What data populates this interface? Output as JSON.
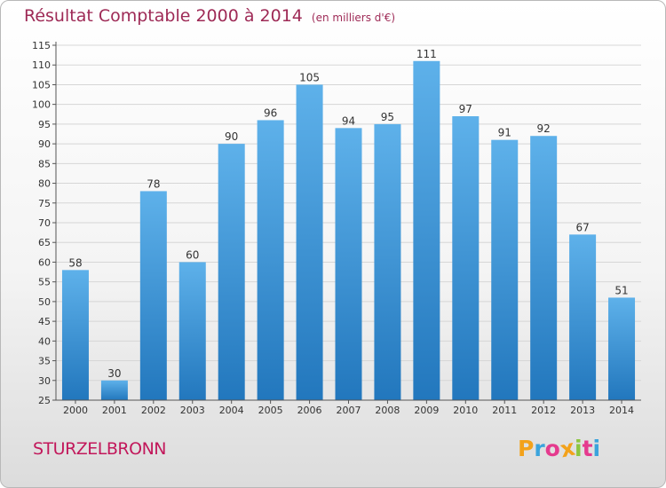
{
  "header": {
    "title": "Résultat Comptable 2000 à 2014",
    "unit": "(en milliers d'€)"
  },
  "footer": {
    "place": "STURZELBRONN",
    "logo_letters": [
      "P",
      "r",
      "o",
      "x",
      "i",
      "t",
      "i"
    ],
    "logo_colors": [
      "#f3a21b",
      "#3aa3dc",
      "#e53a8e",
      "#f3a21b",
      "#8dc63f",
      "#e53a8e",
      "#3aa3dc"
    ]
  },
  "colors": {
    "title": "#9e2a56",
    "place": "#c2185b",
    "bar_top": "#5eb1ea",
    "bar_bottom": "#2277bd",
    "grid": "#d6d6d6",
    "axis": "#555555"
  },
  "chart_data": {
    "type": "bar",
    "title": "Résultat Comptable 2000 à 2014",
    "subtitle": "(en milliers d'€)",
    "xlabel": "",
    "ylabel": "",
    "categories": [
      "2000",
      "2001",
      "2002",
      "2003",
      "2004",
      "2005",
      "2006",
      "2007",
      "2008",
      "2009",
      "2010",
      "2011",
      "2012",
      "2013",
      "2014"
    ],
    "values": [
      58,
      30,
      78,
      60,
      90,
      96,
      105,
      94,
      95,
      111,
      97,
      91,
      92,
      67,
      51
    ],
    "ylim": [
      25,
      115
    ],
    "yticks": [
      25,
      30,
      35,
      40,
      45,
      50,
      55,
      60,
      65,
      70,
      75,
      80,
      85,
      90,
      95,
      100,
      105,
      110,
      115
    ],
    "grid": true,
    "legend": "none"
  }
}
